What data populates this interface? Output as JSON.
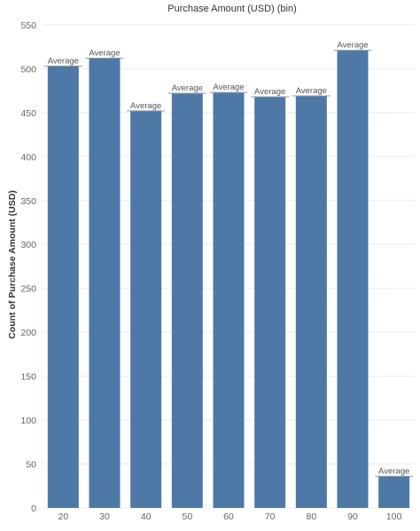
{
  "chart_data": {
    "type": "bar",
    "title": "Purchase Amount (USD) (bin)",
    "xlabel": "",
    "ylabel": "Count of Purchase Amount (USD)",
    "categories": [
      "20",
      "30",
      "40",
      "50",
      "60",
      "70",
      "80",
      "90",
      "100"
    ],
    "values": [
      503,
      512,
      452,
      472,
      473,
      468,
      469,
      521,
      36
    ],
    "reference_label": "Average",
    "ylim": [
      0,
      560
    ],
    "yticks": [
      0,
      50,
      100,
      150,
      200,
      250,
      300,
      350,
      400,
      450,
      500,
      550
    ],
    "grid": true,
    "bar_color": "#4e79a7",
    "reference_line_color": "#999999"
  }
}
